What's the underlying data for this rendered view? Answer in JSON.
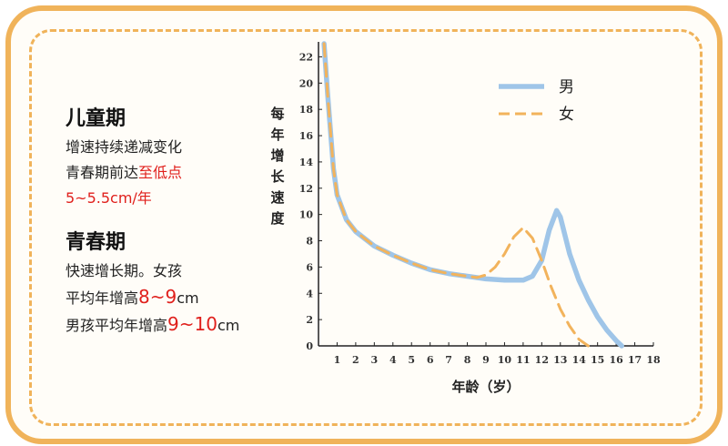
{
  "panel": {
    "childhood": {
      "title": "儿童期",
      "line1": "增速持续递减变化",
      "line2_pre": "青春期前达",
      "line2_red": "至低点",
      "line3_red": "5~5.5cm/年"
    },
    "puberty": {
      "title": "青春期",
      "line1": "快速增长期。女孩",
      "line2_pre": "平均年增高",
      "line2_red": "8~9",
      "line2_post": "cm",
      "line3_pre": "男孩平均年增高",
      "line3_red": "9~10",
      "line3_post": "cm"
    }
  },
  "colors": {
    "border": "#f0b35a",
    "male": "#9fc5e8",
    "female": "#f2b35c",
    "highlight": "#e0201c"
  },
  "chart_data": {
    "type": "line",
    "ylabel": "每年增长速度",
    "xlabel": "年龄（岁）",
    "xticks": [
      1,
      2,
      3,
      4,
      5,
      6,
      7,
      8,
      9,
      10,
      11,
      12,
      13,
      14,
      15,
      16,
      17,
      18
    ],
    "yticks": [
      0,
      2,
      4,
      6,
      8,
      10,
      12,
      14,
      16,
      18,
      20,
      22
    ],
    "xlim": [
      0,
      18
    ],
    "ylim": [
      0,
      23
    ],
    "legend_position": "top-right",
    "series": [
      {
        "name": "男",
        "style": "solid",
        "x": [
          0.3,
          0.5,
          0.8,
          1,
          1.5,
          2,
          3,
          4,
          5,
          6,
          7,
          8,
          9,
          10,
          11,
          11.5,
          12,
          12.4,
          12.8,
          13,
          13.5,
          14,
          14.5,
          15,
          15.5,
          16,
          16.3
        ],
        "y": [
          23,
          19,
          13.5,
          11.5,
          9.6,
          8.7,
          7.6,
          6.9,
          6.3,
          5.8,
          5.5,
          5.3,
          5.1,
          5,
          5,
          5.3,
          6.5,
          8.8,
          10.3,
          9.8,
          7,
          5,
          3.5,
          2.2,
          1.2,
          0.4,
          0
        ]
      },
      {
        "name": "女",
        "style": "dashed",
        "x": [
          0.3,
          0.5,
          0.8,
          1,
          1.5,
          2,
          3,
          4,
          5,
          6,
          7,
          8,
          8.5,
          9,
          9.5,
          10,
          10.5,
          11,
          11.5,
          12,
          12.5,
          13,
          13.5,
          14,
          14.5
        ],
        "y": [
          23,
          19,
          13.5,
          11.5,
          9.6,
          8.7,
          7.6,
          6.9,
          6.3,
          5.8,
          5.5,
          5.3,
          5.2,
          5.4,
          6,
          7,
          8.3,
          9,
          8.2,
          6.5,
          4.5,
          2.8,
          1.5,
          0.5,
          0
        ]
      }
    ]
  }
}
